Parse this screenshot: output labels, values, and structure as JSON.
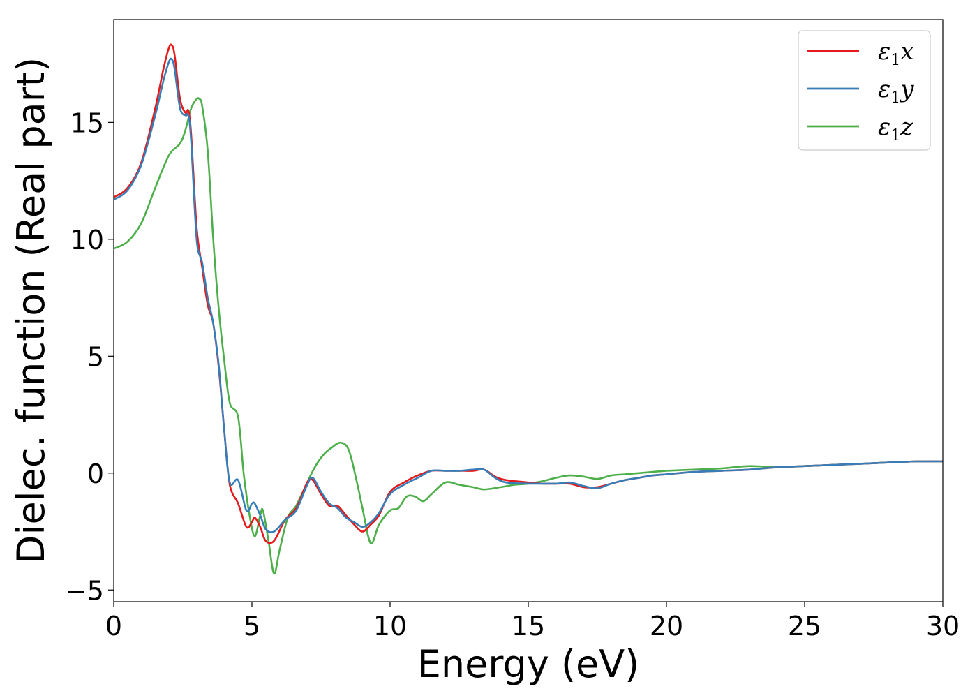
{
  "chart_data": {
    "type": "line",
    "title": "",
    "xlabel": "Energy (eV)",
    "ylabel": "Dielec. function (Real part)",
    "xlim": [
      0,
      30
    ],
    "ylim": [
      -5.5,
      19.4
    ],
    "xticks": [
      0,
      5,
      10,
      15,
      20,
      25,
      30
    ],
    "yticks": [
      -5,
      0,
      5,
      10,
      15
    ],
    "xtick_labels": [
      "0",
      "5",
      "10",
      "15",
      "20",
      "25",
      "30"
    ],
    "ytick_labels": [
      "−5",
      "0",
      "5",
      "10",
      "15"
    ],
    "grid": false,
    "legend_position": "top-right",
    "series": [
      {
        "name": "ε₁x",
        "name_base": "ε",
        "name_sub": "1",
        "name_suffix": "x",
        "color": "#e41a1c",
        "x": [
          0,
          0.5,
          1.0,
          1.5,
          1.8,
          2.0,
          2.1,
          2.2,
          2.4,
          2.6,
          2.7,
          2.8,
          3.0,
          3.2,
          3.4,
          3.6,
          3.8,
          4.0,
          4.2,
          4.5,
          4.8,
          5.0,
          5.1,
          5.3,
          5.5,
          5.8,
          6.2,
          6.6,
          7.0,
          7.2,
          7.5,
          7.8,
          8.1,
          8.4,
          8.7,
          9.0,
          9.3,
          9.6,
          10.0,
          10.5,
          11.0,
          11.5,
          12.0,
          12.5,
          13.0,
          13.4,
          13.8,
          14.2,
          15.0,
          15.5,
          16.0,
          16.5,
          17.0,
          17.5,
          18.0,
          18.5,
          19.0,
          19.5,
          20.0,
          21.0,
          22.0,
          23.0,
          24.0,
          25.0,
          26.0,
          27.0,
          28.0,
          29.0,
          30.0
        ],
        "y": [
          11.8,
          12.2,
          13.3,
          15.6,
          17.3,
          18.2,
          18.3,
          17.9,
          16.0,
          15.4,
          15.5,
          14.5,
          10.5,
          8.8,
          7.2,
          6.4,
          4.5,
          1.8,
          -0.5,
          -1.3,
          -2.3,
          -2.1,
          -1.9,
          -2.3,
          -2.9,
          -2.9,
          -2.0,
          -1.5,
          -0.4,
          -0.3,
          -0.9,
          -1.4,
          -1.4,
          -1.8,
          -2.2,
          -2.5,
          -2.2,
          -1.8,
          -0.8,
          -0.4,
          -0.1,
          0.1,
          0.1,
          0.1,
          0.1,
          0.15,
          -0.15,
          -0.3,
          -0.4,
          -0.45,
          -0.45,
          -0.45,
          -0.6,
          -0.6,
          -0.45,
          -0.3,
          -0.2,
          -0.1,
          -0.05,
          0.05,
          0.1,
          0.15,
          0.25,
          0.3,
          0.35,
          0.4,
          0.45,
          0.5,
          0.5
        ]
      },
      {
        "name": "ε₁y",
        "name_base": "ε",
        "name_sub": "1",
        "name_suffix": "y",
        "color": "#377eb8",
        "x": [
          0,
          0.5,
          1.0,
          1.5,
          1.8,
          2.0,
          2.1,
          2.2,
          2.4,
          2.6,
          2.7,
          2.8,
          3.0,
          3.2,
          3.4,
          3.6,
          3.8,
          4.0,
          4.2,
          4.5,
          4.8,
          5.0,
          5.1,
          5.3,
          5.5,
          5.8,
          6.2,
          6.6,
          7.0,
          7.2,
          7.5,
          7.8,
          8.1,
          8.4,
          8.7,
          9.0,
          9.3,
          9.6,
          10.0,
          10.5,
          11.0,
          11.5,
          12.0,
          12.5,
          13.0,
          13.4,
          13.8,
          14.2,
          15.0,
          15.5,
          16.0,
          16.5,
          17.0,
          17.5,
          18.0,
          18.5,
          19.0,
          19.5,
          20.0,
          21.0,
          22.0,
          23.0,
          24.0,
          25.0,
          26.0,
          27.0,
          28.0,
          29.0,
          30.0
        ],
        "y": [
          11.7,
          12.1,
          13.2,
          15.3,
          16.8,
          17.6,
          17.7,
          17.3,
          15.6,
          15.3,
          15.3,
          14.2,
          10.0,
          9.0,
          7.5,
          6.4,
          4.6,
          1.8,
          -0.4,
          -0.3,
          -1.6,
          -1.3,
          -1.3,
          -1.8,
          -2.4,
          -2.5,
          -2.0,
          -1.6,
          -0.5,
          -0.2,
          -0.8,
          -1.3,
          -1.5,
          -1.9,
          -2.1,
          -2.3,
          -2.1,
          -1.7,
          -0.9,
          -0.5,
          -0.2,
          0.1,
          0.1,
          0.1,
          0.15,
          0.15,
          -0.2,
          -0.4,
          -0.45,
          -0.45,
          -0.45,
          -0.4,
          -0.55,
          -0.65,
          -0.45,
          -0.3,
          -0.2,
          -0.1,
          -0.05,
          0.05,
          0.1,
          0.15,
          0.25,
          0.3,
          0.35,
          0.4,
          0.45,
          0.5,
          0.5
        ]
      },
      {
        "name": "ε₁z",
        "name_base": "ε",
        "name_sub": "1",
        "name_suffix": "z",
        "color": "#4daf4a",
        "x": [
          0,
          0.5,
          1.0,
          1.5,
          2.0,
          2.4,
          2.6,
          2.8,
          3.0,
          3.1,
          3.2,
          3.4,
          3.6,
          3.8,
          4.0,
          4.2,
          4.5,
          4.7,
          4.9,
          5.1,
          5.3,
          5.4,
          5.6,
          5.8,
          6.0,
          6.3,
          6.6,
          7.0,
          7.3,
          7.6,
          7.9,
          8.2,
          8.5,
          8.8,
          9.0,
          9.3,
          9.6,
          10.0,
          10.3,
          10.6,
          10.9,
          11.2,
          11.5,
          12.0,
          12.5,
          13.0,
          13.4,
          14.0,
          14.5,
          15.0,
          15.5,
          16.0,
          16.5,
          17.0,
          17.5,
          18.0,
          18.5,
          19.0,
          19.5,
          20.0,
          21.0,
          22.0,
          23.0,
          24.0,
          25.0,
          26.0,
          27.0,
          28.0,
          29.0,
          30.0
        ],
        "y": [
          9.6,
          9.9,
          10.7,
          12.2,
          13.6,
          14.1,
          14.7,
          15.6,
          16.0,
          16.0,
          15.7,
          13.8,
          10.0,
          7.0,
          4.8,
          3.0,
          2.4,
          0.0,
          -1.7,
          -2.7,
          -1.8,
          -1.6,
          -2.9,
          -4.3,
          -3.3,
          -1.9,
          -1.4,
          -0.4,
          0.3,
          0.8,
          1.1,
          1.3,
          1.0,
          -0.4,
          -1.5,
          -3.0,
          -2.2,
          -1.6,
          -1.5,
          -1.0,
          -1.0,
          -1.2,
          -0.9,
          -0.4,
          -0.5,
          -0.6,
          -0.7,
          -0.6,
          -0.5,
          -0.45,
          -0.35,
          -0.2,
          -0.1,
          -0.15,
          -0.25,
          -0.1,
          -0.05,
          0.0,
          0.05,
          0.1,
          0.15,
          0.2,
          0.3,
          0.25,
          0.3,
          0.35,
          0.4,
          0.45,
          0.5,
          0.5
        ]
      }
    ]
  }
}
